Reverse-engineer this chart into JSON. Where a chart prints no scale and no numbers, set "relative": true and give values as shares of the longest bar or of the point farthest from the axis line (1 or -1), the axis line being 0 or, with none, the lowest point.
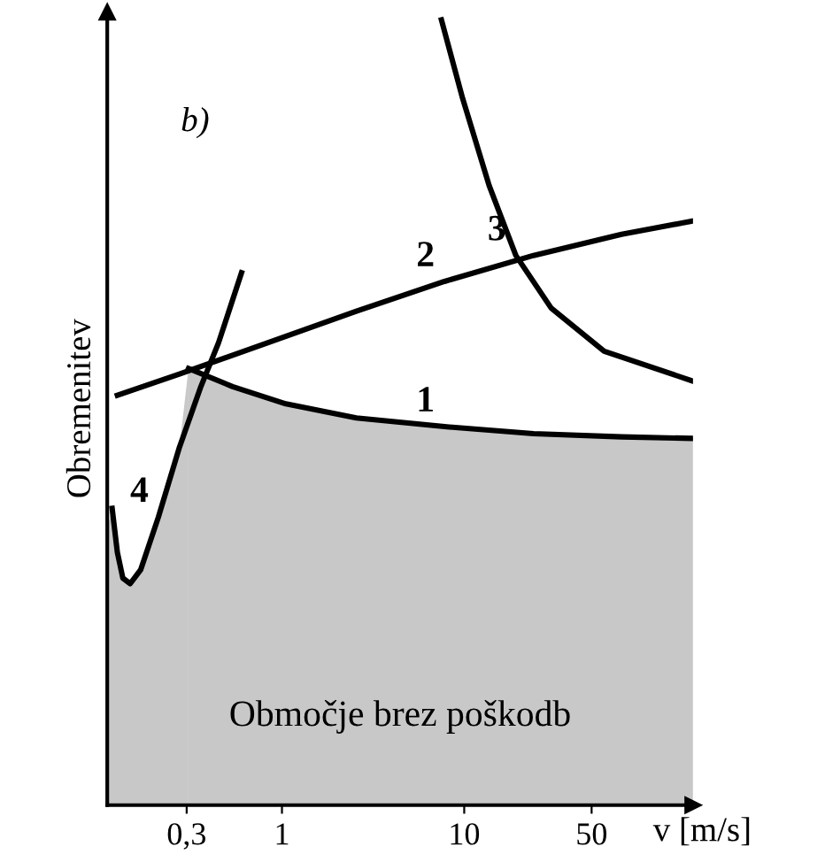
{
  "chart_data": {
    "type": "line",
    "relative": true,
    "log": "x",
    "xlabel": "v [m/s]",
    "ylabel": "Obremenitev",
    "xlim": [
      0.11,
      180
    ],
    "xticks": [
      {
        "value": 0.3,
        "label": "0,3"
      },
      1,
      10,
      50
    ],
    "annotations": [
      "b)",
      "Območje brez poškodb"
    ],
    "series": [
      {
        "type": "area",
        "color": "#c8c8c8",
        "x": [
          0.112,
          0.117,
          0.125,
          0.134,
          0.147,
          0.168,
          0.21,
          0.274,
          0.307
        ],
        "values": [
          0.36,
          0.378,
          0.322,
          0.289,
          0.282,
          0.3,
          0.367,
          0.456,
          0.556
        ]
      },
      {
        "name": "1",
        "type": "area",
        "color": "#000000",
        "x": [
          0.307,
          0.536,
          1.05,
          2.56,
          7.8,
          24,
          73,
          180
        ],
        "values": [
          0.556,
          0.533,
          0.511,
          0.493,
          0.482,
          0.473,
          0.469,
          0.467
        ]
      },
      {
        "name": "2",
        "color": "#000000",
        "x": [
          0.125,
          0.274,
          0.84,
          2.56,
          7.8,
          24,
          73,
          180
        ],
        "values": [
          0.522,
          0.549,
          0.589,
          0.629,
          0.667,
          0.7,
          0.727,
          0.744
        ]
      },
      {
        "name": "3",
        "color": "#000000",
        "x": [
          7.5,
          9.8,
          13.7,
          19.2,
          30,
          58.6,
          180
        ],
        "values": [
          1.0,
          0.9,
          0.789,
          0.7,
          0.633,
          0.578,
          0.54
        ]
      },
      {
        "name": "4",
        "color": "#000000",
        "x": [
          0.117,
          0.125,
          0.134,
          0.147,
          0.168,
          0.21,
          0.274,
          0.359,
          0.449,
          0.6
        ],
        "values": [
          0.378,
          0.322,
          0.289,
          0.282,
          0.3,
          0.367,
          0.456,
          0.533,
          0.589,
          0.678
        ]
      }
    ],
    "marker": "none",
    "line_style": "solid",
    "grid": false,
    "legend": false
  }
}
